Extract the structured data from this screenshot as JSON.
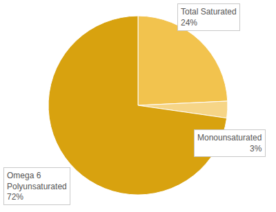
{
  "chart_data": {
    "type": "pie",
    "categories": [
      "Total Saturated",
      "Monounsaturated",
      "Omega 6 Polyunsaturated"
    ],
    "values": [
      24,
      3,
      72
    ],
    "value_labels": [
      "24%",
      "3%",
      "72%"
    ],
    "colors": [
      "#f2c34e",
      "#f6d587",
      "#d8a20f"
    ],
    "data_labels": true
  }
}
